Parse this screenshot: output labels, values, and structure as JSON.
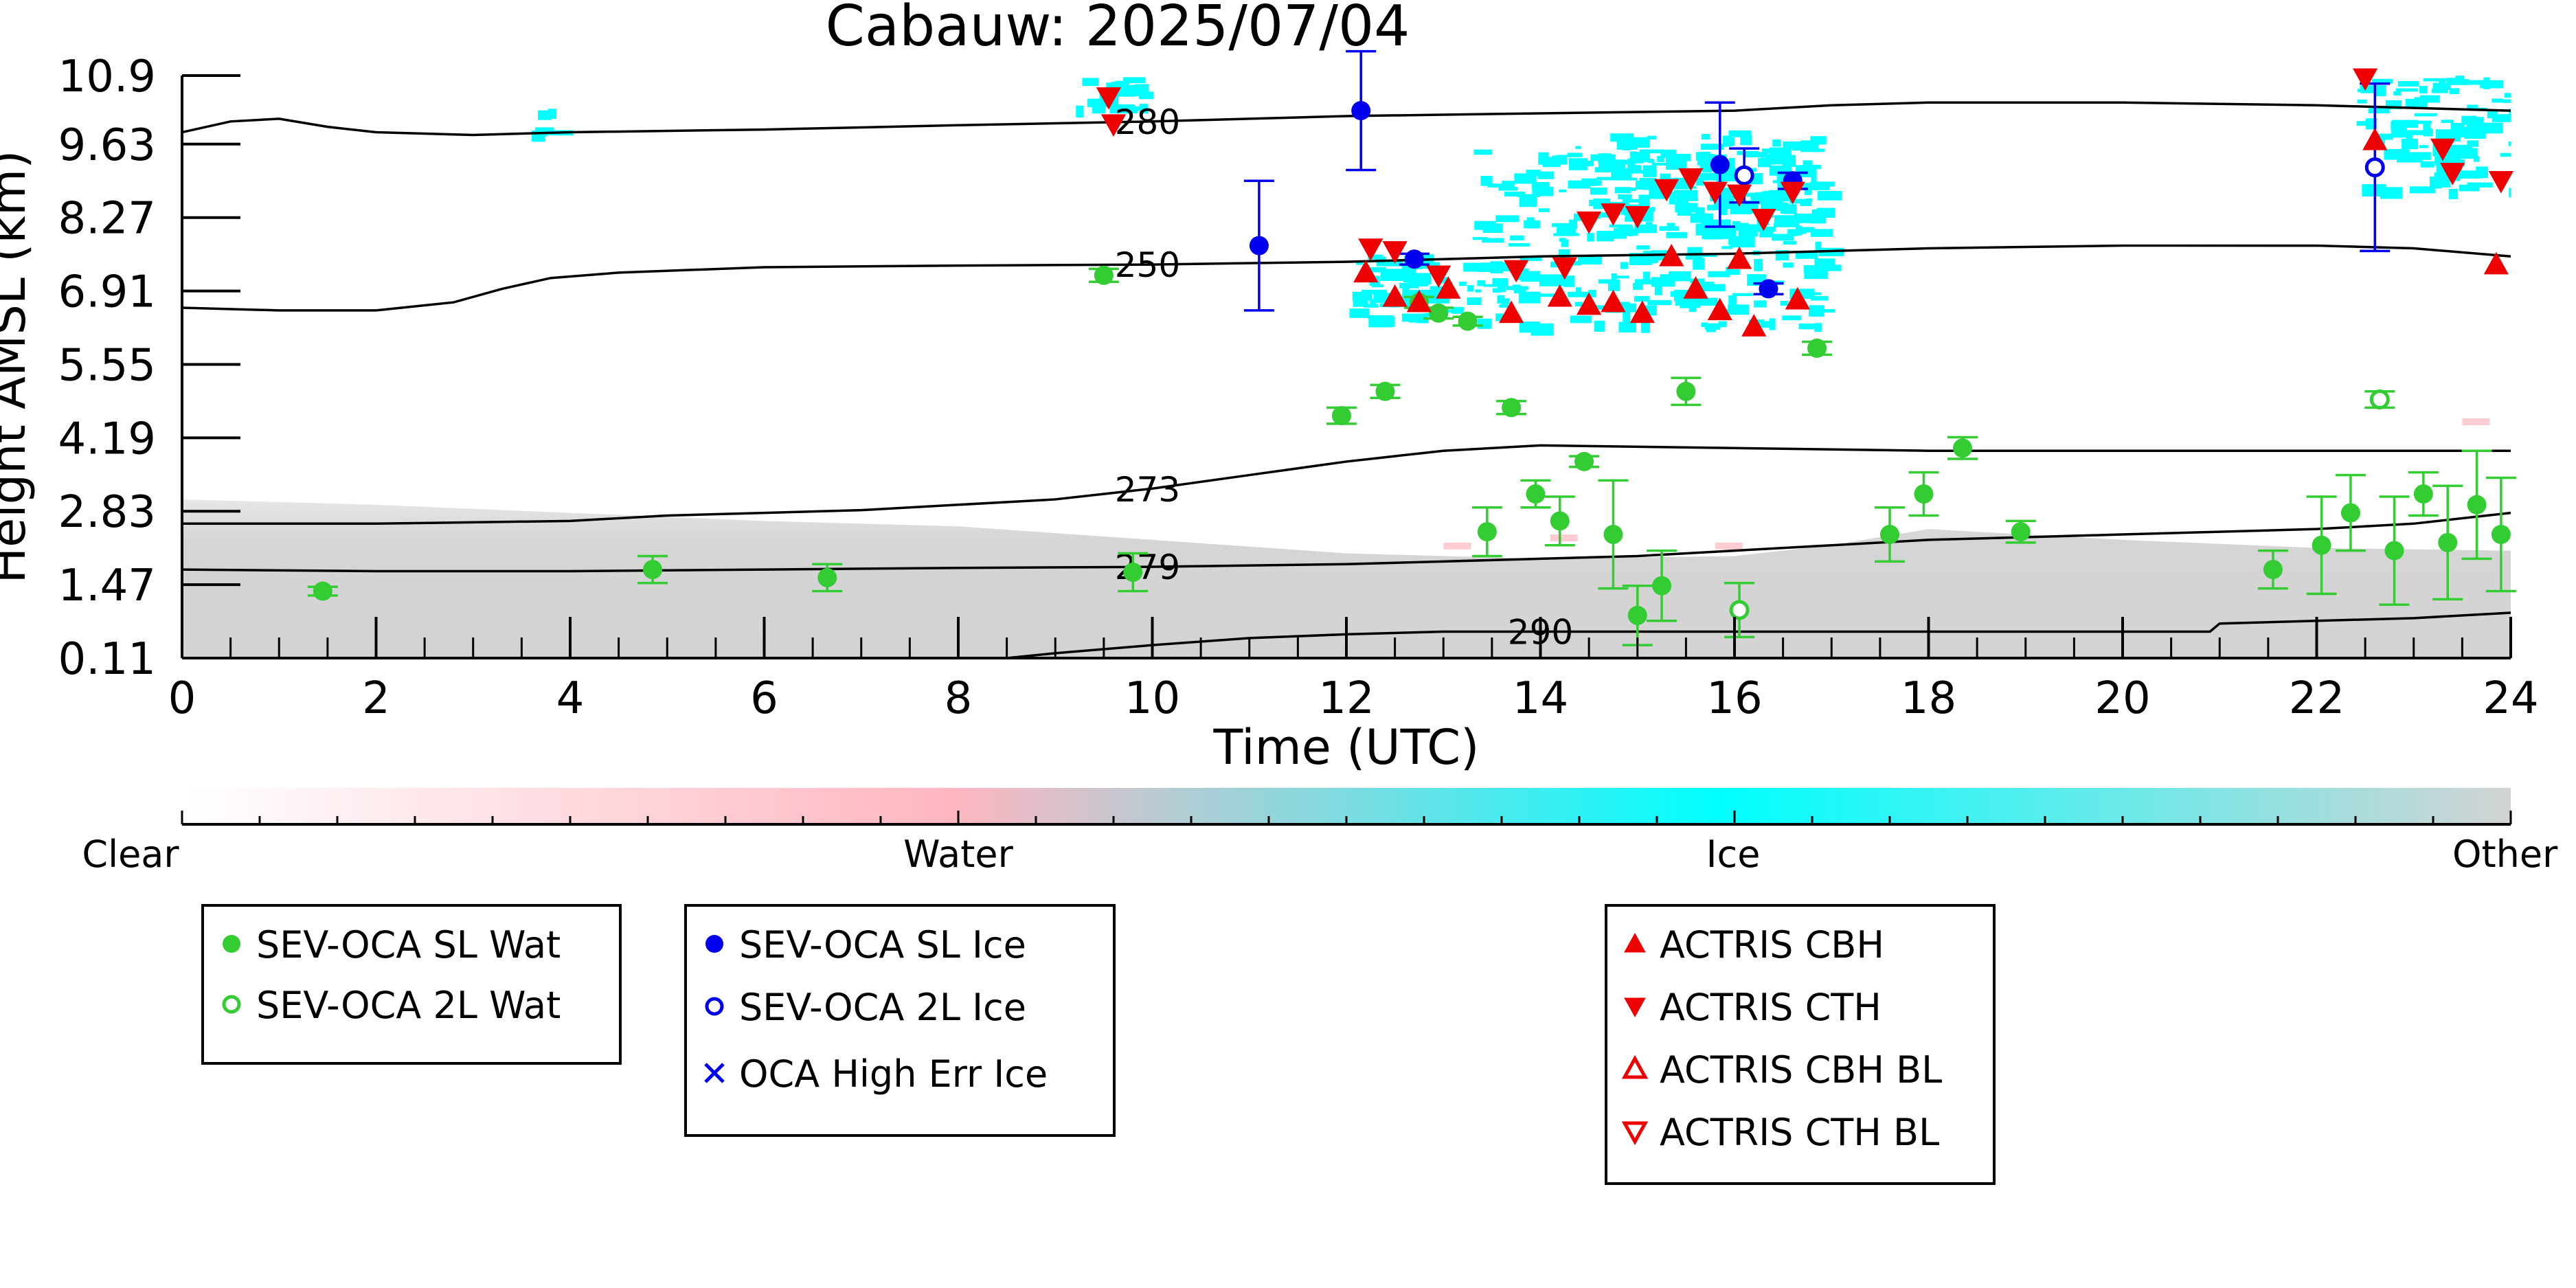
{
  "chart_data": {
    "type": "scatter",
    "title": "Cabauw: 2025/07/04",
    "xlabel": "Time (UTC)",
    "ylabel": "Height AMSL (km)",
    "xlim": [
      0,
      24
    ],
    "ylim": [
      0.11,
      10.9
    ],
    "x_ticks": [
      "0",
      "2",
      "4",
      "6",
      "8",
      "10",
      "12",
      "14",
      "16",
      "18",
      "20",
      "22",
      "24"
    ],
    "y_ticks": [
      "0.11",
      "1.47",
      "2.83",
      "4.19",
      "5.55",
      "6.91",
      "8.27",
      "9.63",
      "10.9"
    ],
    "grid": false,
    "background_layer": "cloud classification (Clear / Water / Ice / Other)",
    "colors": {
      "clear": "#ffffff",
      "water": "#ffb6c1",
      "ice": "#00ffff",
      "other": "#d3d3d3",
      "sev_wat": "#33cc33",
      "sev_ice": "#0000ee",
      "actris": "#ee0000",
      "contour": "#000000"
    },
    "colorbar": {
      "labels": [
        "Clear",
        "Water",
        "Ice",
        "Other"
      ]
    },
    "contours": [
      {
        "label": "280",
        "x": [
          0,
          0.5,
          1,
          1.5,
          2,
          3,
          4,
          6,
          8,
          10,
          12,
          14,
          16,
          17,
          18,
          20,
          22,
          24
        ],
        "y": [
          9.85,
          10.05,
          10.1,
          9.95,
          9.85,
          9.8,
          9.85,
          9.9,
          9.98,
          10.05,
          10.15,
          10.2,
          10.25,
          10.35,
          10.4,
          10.4,
          10.35,
          10.25
        ]
      },
      {
        "label": "250",
        "x": [
          0,
          1,
          2,
          2.8,
          3.3,
          3.8,
          4.5,
          6,
          8,
          10,
          12,
          14,
          16,
          18,
          20,
          22,
          23,
          24
        ],
        "y": [
          6.6,
          6.55,
          6.55,
          6.7,
          6.95,
          7.15,
          7.25,
          7.35,
          7.38,
          7.4,
          7.45,
          7.55,
          7.6,
          7.7,
          7.75,
          7.75,
          7.7,
          7.55
        ]
      },
      {
        "label": "273",
        "x": [
          0,
          2,
          4,
          5,
          6,
          7,
          8,
          9,
          10,
          11,
          12,
          13,
          14,
          16,
          18,
          20,
          22,
          24
        ],
        "y": [
          2.6,
          2.6,
          2.65,
          2.75,
          2.8,
          2.85,
          2.95,
          3.05,
          3.25,
          3.5,
          3.75,
          3.95,
          4.05,
          4.0,
          3.95,
          3.95,
          3.95,
          3.95
        ]
      },
      {
        "label": "279",
        "x": [
          0,
          2,
          4,
          6,
          8,
          10,
          12,
          13,
          14,
          15,
          16,
          17,
          18,
          19,
          20,
          21,
          22,
          23,
          24
        ],
        "y": [
          1.75,
          1.72,
          1.72,
          1.75,
          1.78,
          1.8,
          1.85,
          1.9,
          1.95,
          2.0,
          2.1,
          2.2,
          2.3,
          2.35,
          2.4,
          2.45,
          2.5,
          2.6,
          2.8
        ]
      },
      {
        "label": "290",
        "x": [
          8.5,
          9,
          10,
          11,
          12,
          13,
          14,
          16,
          18,
          20,
          20.9,
          21.0,
          22,
          23,
          24
        ],
        "y": [
          0.11,
          0.2,
          0.35,
          0.48,
          0.55,
          0.6,
          0.6,
          0.6,
          0.6,
          0.6,
          0.6,
          0.75,
          0.8,
          0.85,
          0.95
        ]
      }
    ],
    "series": [
      {
        "name": "SEV-OCA SL Wat",
        "marker": "filled-circle",
        "points": [
          {
            "x": 1.45,
            "y": 1.35,
            "err": 0.08
          },
          {
            "x": 4.85,
            "y": 1.75,
            "err": 0.25
          },
          {
            "x": 6.65,
            "y": 1.6,
            "err": 0.25
          },
          {
            "x": 9.5,
            "y": 7.2,
            "err": 0.12
          },
          {
            "x": 9.8,
            "y": 1.7,
            "err": 0.35
          },
          {
            "x": 11.95,
            "y": 4.6,
            "err": 0.15
          },
          {
            "x": 12.4,
            "y": 5.05,
            "err": 0.12
          },
          {
            "x": 12.75,
            "y": 6.7,
            "err": 0.1
          },
          {
            "x": 12.95,
            "y": 6.5,
            "err": 0.1
          },
          {
            "x": 13.25,
            "y": 6.35,
            "err": 0.08
          },
          {
            "x": 13.45,
            "y": 2.45,
            "err": 0.45
          },
          {
            "x": 13.7,
            "y": 4.75,
            "err": 0.12
          },
          {
            "x": 13.95,
            "y": 3.15,
            "err": 0.25
          },
          {
            "x": 14.2,
            "y": 2.65,
            "err": 0.45
          },
          {
            "x": 14.45,
            "y": 3.75,
            "err": 0.1
          },
          {
            "x": 14.75,
            "y": 2.4,
            "err": 1.0
          },
          {
            "x": 15.0,
            "y": 0.9,
            "err": 0.55
          },
          {
            "x": 15.25,
            "y": 1.45,
            "err": 0.65
          },
          {
            "x": 15.5,
            "y": 5.05,
            "err": 0.25
          },
          {
            "x": 16.85,
            "y": 5.85,
            "err": 0.12
          },
          {
            "x": 17.6,
            "y": 2.4,
            "err": 0.5
          },
          {
            "x": 17.95,
            "y": 3.15,
            "err": 0.4
          },
          {
            "x": 18.35,
            "y": 4.0,
            "err": 0.2
          },
          {
            "x": 18.95,
            "y": 2.45,
            "err": 0.2
          },
          {
            "x": 21.55,
            "y": 1.75,
            "err": 0.35
          },
          {
            "x": 22.05,
            "y": 2.2,
            "err": 0.9
          },
          {
            "x": 22.35,
            "y": 2.8,
            "err": 0.7
          },
          {
            "x": 22.8,
            "y": 2.1,
            "err": 1.0
          },
          {
            "x": 23.1,
            "y": 3.15,
            "err": 0.4
          },
          {
            "x": 23.35,
            "y": 2.25,
            "err": 1.05
          },
          {
            "x": 23.65,
            "y": 2.95,
            "err": 1.0
          },
          {
            "x": 23.9,
            "y": 2.4,
            "err": 1.05
          }
        ]
      },
      {
        "name": "SEV-OCA 2L Wat",
        "marker": "open-circle",
        "points": [
          {
            "x": 16.05,
            "y": 1.0,
            "err": 0.5
          },
          {
            "x": 22.65,
            "y": 4.9,
            "err": 0.15
          }
        ]
      },
      {
        "name": "SEV-OCA SL Ice",
        "marker": "filled-circle",
        "points": [
          {
            "x": 11.1,
            "y": 7.75,
            "err": 1.2
          },
          {
            "x": 12.15,
            "y": 10.25,
            "err": 1.1
          },
          {
            "x": 12.7,
            "y": 7.5,
            "err": 0.1
          },
          {
            "x": 15.85,
            "y": 9.25,
            "err": 1.15
          },
          {
            "x": 16.35,
            "y": 6.95,
            "err": 0.1
          },
          {
            "x": 16.6,
            "y": 8.95,
            "err": 0.15
          }
        ]
      },
      {
        "name": "SEV-OCA 2L Ice",
        "marker": "open-circle",
        "points": [
          {
            "x": 16.1,
            "y": 9.05,
            "err": 0.5
          },
          {
            "x": 22.6,
            "y": 9.2,
            "err": 1.55
          }
        ]
      },
      {
        "name": "OCA High Err Ice",
        "marker": "x",
        "points": []
      },
      {
        "name": "ACTRIS CBH",
        "marker": "triangle-up",
        "points": [
          {
            "x": 12.2,
            "y": 7.25
          },
          {
            "x": 12.5,
            "y": 6.8
          },
          {
            "x": 12.75,
            "y": 6.7
          },
          {
            "x": 13.05,
            "y": 6.95
          },
          {
            "x": 13.7,
            "y": 6.5
          },
          {
            "x": 14.2,
            "y": 6.8
          },
          {
            "x": 14.5,
            "y": 6.65
          },
          {
            "x": 14.75,
            "y": 6.7
          },
          {
            "x": 15.05,
            "y": 6.5
          },
          {
            "x": 15.35,
            "y": 7.55
          },
          {
            "x": 15.6,
            "y": 6.95
          },
          {
            "x": 15.85,
            "y": 6.55
          },
          {
            "x": 16.05,
            "y": 7.5
          },
          {
            "x": 16.2,
            "y": 6.25
          },
          {
            "x": 16.65,
            "y": 6.75
          },
          {
            "x": 22.6,
            "y": 9.7
          },
          {
            "x": 23.85,
            "y": 7.4
          }
        ]
      },
      {
        "name": "ACTRIS CTH",
        "marker": "triangle-down",
        "points": [
          {
            "x": 9.55,
            "y": 10.5
          },
          {
            "x": 9.6,
            "y": 10.0
          },
          {
            "x": 12.25,
            "y": 7.7
          },
          {
            "x": 12.5,
            "y": 7.65
          },
          {
            "x": 12.95,
            "y": 7.2
          },
          {
            "x": 13.75,
            "y": 7.3
          },
          {
            "x": 14.25,
            "y": 7.35
          },
          {
            "x": 14.5,
            "y": 8.2
          },
          {
            "x": 14.75,
            "y": 8.35
          },
          {
            "x": 15.0,
            "y": 8.3
          },
          {
            "x": 15.3,
            "y": 8.8
          },
          {
            "x": 15.55,
            "y": 9.0
          },
          {
            "x": 15.8,
            "y": 8.75
          },
          {
            "x": 16.05,
            "y": 8.7
          },
          {
            "x": 16.3,
            "y": 8.25
          },
          {
            "x": 16.6,
            "y": 8.75
          },
          {
            "x": 22.5,
            "y": 10.85
          },
          {
            "x": 23.3,
            "y": 9.55
          },
          {
            "x": 23.4,
            "y": 9.1
          },
          {
            "x": 23.9,
            "y": 8.95
          }
        ]
      },
      {
        "name": "ACTRIS CBH BL",
        "marker": "open-triangle-up",
        "points": []
      },
      {
        "name": "ACTRIS CTH BL",
        "marker": "open-triangle-down",
        "points": []
      }
    ],
    "legend_placement": "below plot, three boxes",
    "legend_boxes": [
      [
        "SEV-OCA SL Wat",
        "SEV-OCA 2L Wat"
      ],
      [
        "SEV-OCA SL Ice",
        "SEV-OCA 2L Ice",
        "OCA High Err Ice"
      ],
      [
        "ACTRIS CBH",
        "ACTRIS CTH",
        "ACTRIS CBH BL",
        "ACTRIS CTH BL"
      ]
    ]
  }
}
